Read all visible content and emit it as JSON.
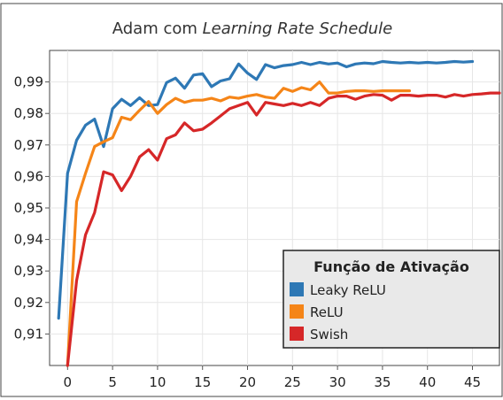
{
  "chart_data": {
    "type": "line",
    "title": {
      "plain": "Adam com ",
      "italic": "Learning Rate Schedule"
    },
    "xlabel": "",
    "ylabel": "",
    "xlim": [
      -2,
      48
    ],
    "ylim": [
      0.9,
      1.0
    ],
    "x_ticks": [
      0,
      5,
      10,
      15,
      20,
      25,
      30,
      35,
      40,
      45
    ],
    "x_tick_labels": [
      "0",
      "5",
      "10",
      "15",
      "20",
      "25",
      "30",
      "35",
      "40",
      "45"
    ],
    "y_ticks": [
      0.91,
      0.92,
      0.93,
      0.94,
      0.95,
      0.96,
      0.97,
      0.98,
      0.99
    ],
    "y_tick_labels": [
      "0,91",
      "0,92",
      "0,93",
      "0,94",
      "0,95",
      "0,96",
      "0,97",
      "0,98",
      "0,99"
    ],
    "grid": true,
    "legend": {
      "title": "Função de Ativação",
      "placement": "bottom-right"
    },
    "series": [
      {
        "name": "Leaky ReLU",
        "color": "#2e78b5",
        "x": [
          -1,
          0,
          1,
          2,
          3,
          4,
          5,
          6,
          7,
          8,
          9,
          10,
          11,
          12,
          13,
          14,
          15,
          16,
          17,
          18,
          19,
          20,
          21,
          22,
          23,
          24,
          25,
          26,
          27,
          28,
          29,
          30,
          31,
          32,
          33,
          34,
          35,
          36,
          37,
          38,
          39,
          40,
          41,
          42,
          43,
          44,
          45
        ],
        "y": [
          0.915,
          0.961,
          0.9715,
          0.9763,
          0.9782,
          0.9695,
          0.9815,
          0.9845,
          0.9825,
          0.985,
          0.9825,
          0.9828,
          0.9898,
          0.9912,
          0.988,
          0.9922,
          0.9926,
          0.9885,
          0.9903,
          0.991,
          0.9957,
          0.9928,
          0.9908,
          0.9955,
          0.9945,
          0.9952,
          0.9955,
          0.9962,
          0.9955,
          0.9962,
          0.9957,
          0.996,
          0.9948,
          0.9957,
          0.996,
          0.9958,
          0.9965,
          0.9962,
          0.996,
          0.9962,
          0.996,
          0.9962,
          0.996,
          0.9962,
          0.9965,
          0.9963,
          0.9965
        ]
      },
      {
        "name": "ReLU",
        "color": "#f58518",
        "x": [
          0,
          1,
          2,
          3,
          4,
          5,
          6,
          7,
          8,
          9,
          10,
          11,
          12,
          13,
          14,
          15,
          16,
          17,
          18,
          19,
          20,
          21,
          22,
          23,
          24,
          25,
          26,
          27,
          28,
          29,
          30,
          31,
          32,
          33,
          34,
          35,
          36,
          37,
          38
        ],
        "y": [
          0.9,
          0.952,
          0.961,
          0.9695,
          0.971,
          0.9723,
          0.9788,
          0.978,
          0.981,
          0.9838,
          0.98,
          0.9828,
          0.9848,
          0.9835,
          0.9842,
          0.9842,
          0.9848,
          0.984,
          0.9852,
          0.9848,
          0.9855,
          0.986,
          0.9852,
          0.9848,
          0.988,
          0.987,
          0.9882,
          0.9875,
          0.99,
          0.9865,
          0.9865,
          0.987,
          0.9872,
          0.9872,
          0.987,
          0.9872,
          0.9872,
          0.9872,
          0.9872
        ]
      },
      {
        "name": "Swish",
        "color": "#d62728",
        "x": [
          0,
          1,
          2,
          3,
          4,
          5,
          6,
          7,
          8,
          9,
          10,
          11,
          12,
          13,
          14,
          15,
          16,
          17,
          18,
          19,
          20,
          21,
          22,
          23,
          24,
          25,
          26,
          27,
          28,
          29,
          30,
          31,
          32,
          33,
          34,
          35,
          36,
          37,
          38,
          39,
          40,
          41,
          42,
          43,
          44,
          45,
          46,
          47,
          48
        ],
        "y": [
          0.9,
          0.927,
          0.9415,
          0.9485,
          0.9615,
          0.9605,
          0.9555,
          0.96,
          0.9662,
          0.9685,
          0.9652,
          0.972,
          0.9732,
          0.977,
          0.9745,
          0.975,
          0.977,
          0.9792,
          0.9815,
          0.9825,
          0.9835,
          0.9795,
          0.9835,
          0.983,
          0.9825,
          0.9832,
          0.9825,
          0.9835,
          0.9825,
          0.9848,
          0.9855,
          0.9855,
          0.9845,
          0.9855,
          0.986,
          0.9858,
          0.9842,
          0.9858,
          0.9858,
          0.9855,
          0.9858,
          0.9858,
          0.9852,
          0.986,
          0.9855,
          0.986,
          0.9862,
          0.9865,
          0.9865
        ]
      }
    ]
  }
}
